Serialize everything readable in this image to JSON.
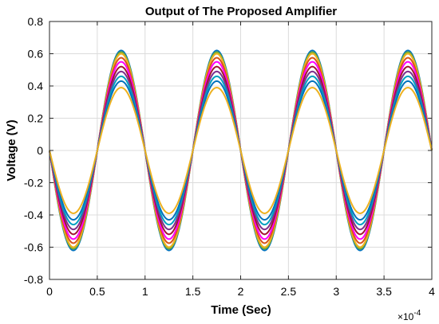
{
  "chart_data": {
    "type": "line",
    "title": "Output of The Proposed Amplifier",
    "xlabel": "Time (Sec)",
    "ylabel": "Voltage (V)",
    "x_exponent_base": "×10",
    "x_exponent_power": "-4",
    "xlim": [
      0,
      4
    ],
    "ylim": [
      -0.8,
      0.8
    ],
    "x_ticks": [
      0,
      0.5,
      1,
      1.5,
      2,
      2.5,
      3,
      3.5,
      4
    ],
    "x_tick_labels": [
      "0",
      "0.5",
      "1",
      "1.5",
      "2",
      "2.5",
      "3",
      "3.5",
      "4"
    ],
    "y_ticks": [
      -0.8,
      -0.6,
      -0.4,
      -0.2,
      0,
      0.2,
      0.4,
      0.6,
      0.8
    ],
    "y_tick_labels": [
      "-0.8",
      "-0.6",
      "-0.4",
      "-0.2",
      "0",
      "0.2",
      "0.4",
      "0.6",
      "0.8"
    ],
    "grid": true,
    "waveform": "y = -A * sin(2*pi*x), x in units of 1e-4 s, period 1e-4 s",
    "series": [
      {
        "amplitude": 0.62,
        "color": "#0072BD"
      },
      {
        "amplitude": 0.61,
        "color": "#77AC30"
      },
      {
        "amplitude": 0.6,
        "color": "#EDB120"
      },
      {
        "amplitude": 0.575,
        "color": "#D95319"
      },
      {
        "amplitude": 0.55,
        "color": "#FF00FF"
      },
      {
        "amplitude": 0.52,
        "color": "#A2142F"
      },
      {
        "amplitude": 0.49,
        "color": "#7E2F8E"
      },
      {
        "amplitude": 0.46,
        "color": "#00A0C0"
      },
      {
        "amplitude": 0.43,
        "color": "#0072BD"
      },
      {
        "amplitude": 0.39,
        "color": "#EDB120"
      }
    ]
  }
}
